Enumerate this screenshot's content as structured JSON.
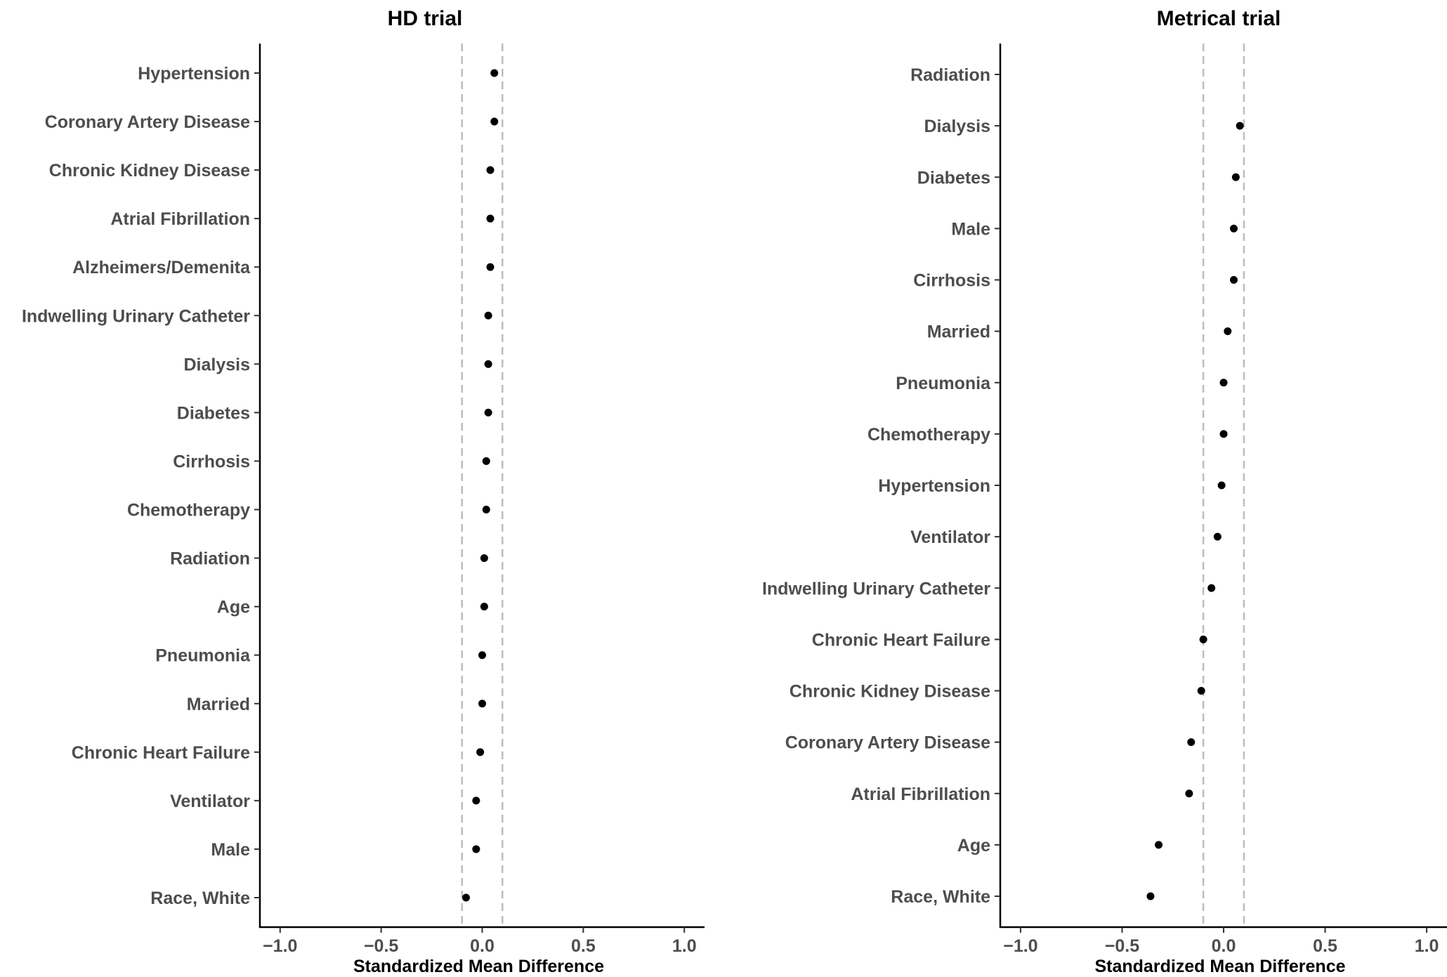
{
  "chart_data": [
    {
      "type": "scatter",
      "title": "HD trial",
      "xlabel": "Standardized Mean Difference",
      "ylabel": "",
      "xlim": [
        -1.1,
        1.1
      ],
      "xticks": [
        -1.0,
        -0.5,
        0.0,
        0.5,
        1.0
      ],
      "xtick_labels": [
        "−1.0",
        "−0.5",
        "0.0",
        "0.5",
        "1.0"
      ],
      "reference_lines": [
        -0.1,
        0.1
      ],
      "reference_line_style": "dashed",
      "grid": false,
      "points": [
        {
          "label": "Hypertension",
          "value": 0.06
        },
        {
          "label": "Coronary Artery Disease",
          "value": 0.06
        },
        {
          "label": "Chronic Kidney Disease",
          "value": 0.04
        },
        {
          "label": "Atrial Fibrillation",
          "value": 0.04
        },
        {
          "label": "Alzheimers/Demenita",
          "value": 0.04
        },
        {
          "label": "Indwelling Urinary Catheter",
          "value": 0.03
        },
        {
          "label": "Dialysis",
          "value": 0.03
        },
        {
          "label": "Diabetes",
          "value": 0.03
        },
        {
          "label": "Cirrhosis",
          "value": 0.02
        },
        {
          "label": "Chemotherapy",
          "value": 0.02
        },
        {
          "label": "Radiation",
          "value": 0.01
        },
        {
          "label": "Age",
          "value": 0.01
        },
        {
          "label": "Pneumonia",
          "value": 0.0
        },
        {
          "label": "Married",
          "value": 0.0
        },
        {
          "label": "Chronic Heart Failure",
          "value": -0.01
        },
        {
          "label": "Ventilator",
          "value": -0.03
        },
        {
          "label": "Male",
          "value": -0.03
        },
        {
          "label": "Race, White",
          "value": -0.08
        }
      ]
    },
    {
      "type": "scatter",
      "title": "Metrical trial",
      "xlabel": "Standardized Mean Difference",
      "ylabel": "",
      "xlim": [
        -1.1,
        1.1
      ],
      "xticks": [
        -1.0,
        -0.5,
        0.0,
        0.5,
        1.0
      ],
      "xtick_labels": [
        "−1.0",
        "−0.5",
        "0.0",
        "0.5",
        "1.0"
      ],
      "reference_lines": [
        -0.1,
        0.1
      ],
      "reference_line_style": "dashed",
      "grid": false,
      "points": [
        {
          "label": "Radiation",
          "value": null
        },
        {
          "label": "Dialysis",
          "value": 0.08
        },
        {
          "label": "Diabetes",
          "value": 0.06
        },
        {
          "label": "Male",
          "value": 0.05
        },
        {
          "label": "Cirrhosis",
          "value": 0.05
        },
        {
          "label": "Married",
          "value": 0.02
        },
        {
          "label": "Pneumonia",
          "value": 0.0
        },
        {
          "label": "Chemotherapy",
          "value": 0.0
        },
        {
          "label": "Hypertension",
          "value": -0.01
        },
        {
          "label": "Ventilator",
          "value": -0.03
        },
        {
          "label": "Indwelling Urinary Catheter",
          "value": -0.06
        },
        {
          "label": "Chronic Heart Failure",
          "value": -0.1
        },
        {
          "label": "Chronic Kidney Disease",
          "value": -0.11
        },
        {
          "label": "Coronary Artery Disease",
          "value": -0.16
        },
        {
          "label": "Atrial Fibrillation",
          "value": -0.17
        },
        {
          "label": "Age",
          "value": -0.32
        },
        {
          "label": "Race, White",
          "value": -0.36
        }
      ]
    }
  ]
}
